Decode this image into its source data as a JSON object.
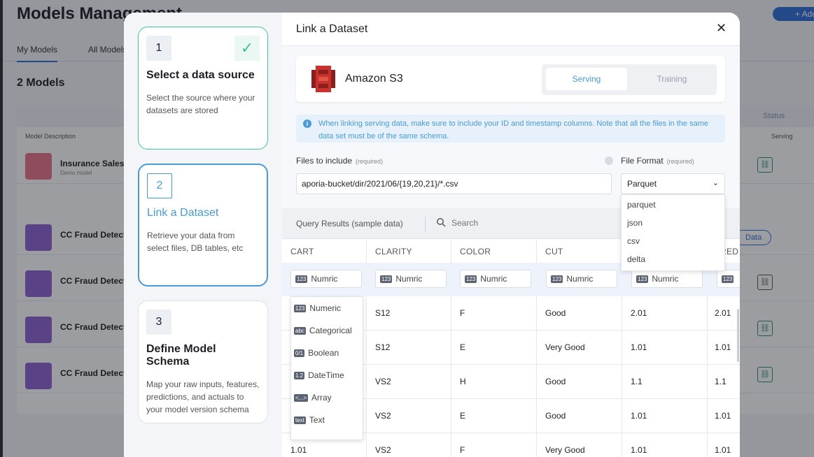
{
  "background": {
    "title": "Models Management",
    "add_label": "+ Add",
    "tabs": [
      "My Models",
      "All Models"
    ],
    "models_count": "2 Models",
    "column_model_description": "Model Description",
    "column_serving": "Serving",
    "column_status": "Status",
    "rows": [
      {
        "name": "Insurance Sales",
        "sub": "Demo model"
      },
      {
        "name": "CC Fraud Detect"
      },
      {
        "name": "CC Fraud Detect"
      },
      {
        "name": "CC Fraud Detect"
      },
      {
        "name": "CC Fraud Detect"
      }
    ],
    "data_pill": "Data"
  },
  "steps": [
    {
      "num": "1",
      "title": "Select a data source",
      "desc": "Select the source where your datasets are stored",
      "state": "done"
    },
    {
      "num": "2",
      "title": "Link a Dataset",
      "desc": "Retrieve your data from select files, DB tables, etc",
      "state": "active"
    },
    {
      "num": "3",
      "title": "Define Model Schema",
      "desc": "Map your raw inputs, features, predictions, and actuals to your model version schema",
      "state": "pending"
    }
  ],
  "dialog": {
    "title": "Link a Dataset",
    "close_glyph": "✕"
  },
  "source": {
    "name": "Amazon S3",
    "icon": "amazon-s3-logo",
    "tabs": {
      "serving": "Serving",
      "training": "Training"
    },
    "selected_tab": "Serving"
  },
  "info": {
    "glyph": "i",
    "text": "When linking serving data, make sure to include your ID and timestamp columns. Note that all the files in the same data set must be of the same schema."
  },
  "files": {
    "label": "Files to include",
    "required": "(required)",
    "value": "aporia-bucket/dir/2021/06/{19,20,21}/*.csv"
  },
  "file_format": {
    "label": "File Format",
    "required": "(required)",
    "value": "Parquet",
    "options": [
      "parquet",
      "json",
      "csv",
      "delta"
    ]
  },
  "query": {
    "title": "Query Results (sample data)",
    "search_placeholder": "Search"
  },
  "grid": {
    "columns": [
      "CART",
      "CLARITY",
      "COLOR",
      "CUT",
      "",
      "RED"
    ],
    "type_selector": {
      "badge": "123",
      "label": "Numric"
    },
    "rows": [
      [
        "",
        "S12",
        "F",
        "Good",
        "2.01",
        "2.01"
      ],
      [
        "",
        "S12",
        "E",
        "Very Good",
        "1.01",
        "1.01"
      ],
      [
        "",
        "VS2",
        "H",
        "Good",
        "1.1",
        "1.1"
      ],
      [
        "",
        "VS2",
        "E",
        "Good",
        "1.01",
        "1.01"
      ],
      [
        "1.01",
        "VS2",
        "F",
        "Very Good",
        "1.01",
        "1.01"
      ]
    ]
  },
  "type_menu": [
    {
      "badge": "123",
      "label": "Numeric"
    },
    {
      "badge": "abc",
      "label": "Categorical"
    },
    {
      "badge": "0/1",
      "label": "Boolean"
    },
    {
      "badge": "1.2",
      "label": "DateTime"
    },
    {
      "badge": "<...>",
      "label": "Array"
    },
    {
      "badge": "text",
      "label": "Text"
    }
  ],
  "colors": {
    "accent": "#4a9ad8",
    "success": "#42c59b",
    "info_bg": "#e6f1fb",
    "brand_s3": "#c7322f"
  }
}
